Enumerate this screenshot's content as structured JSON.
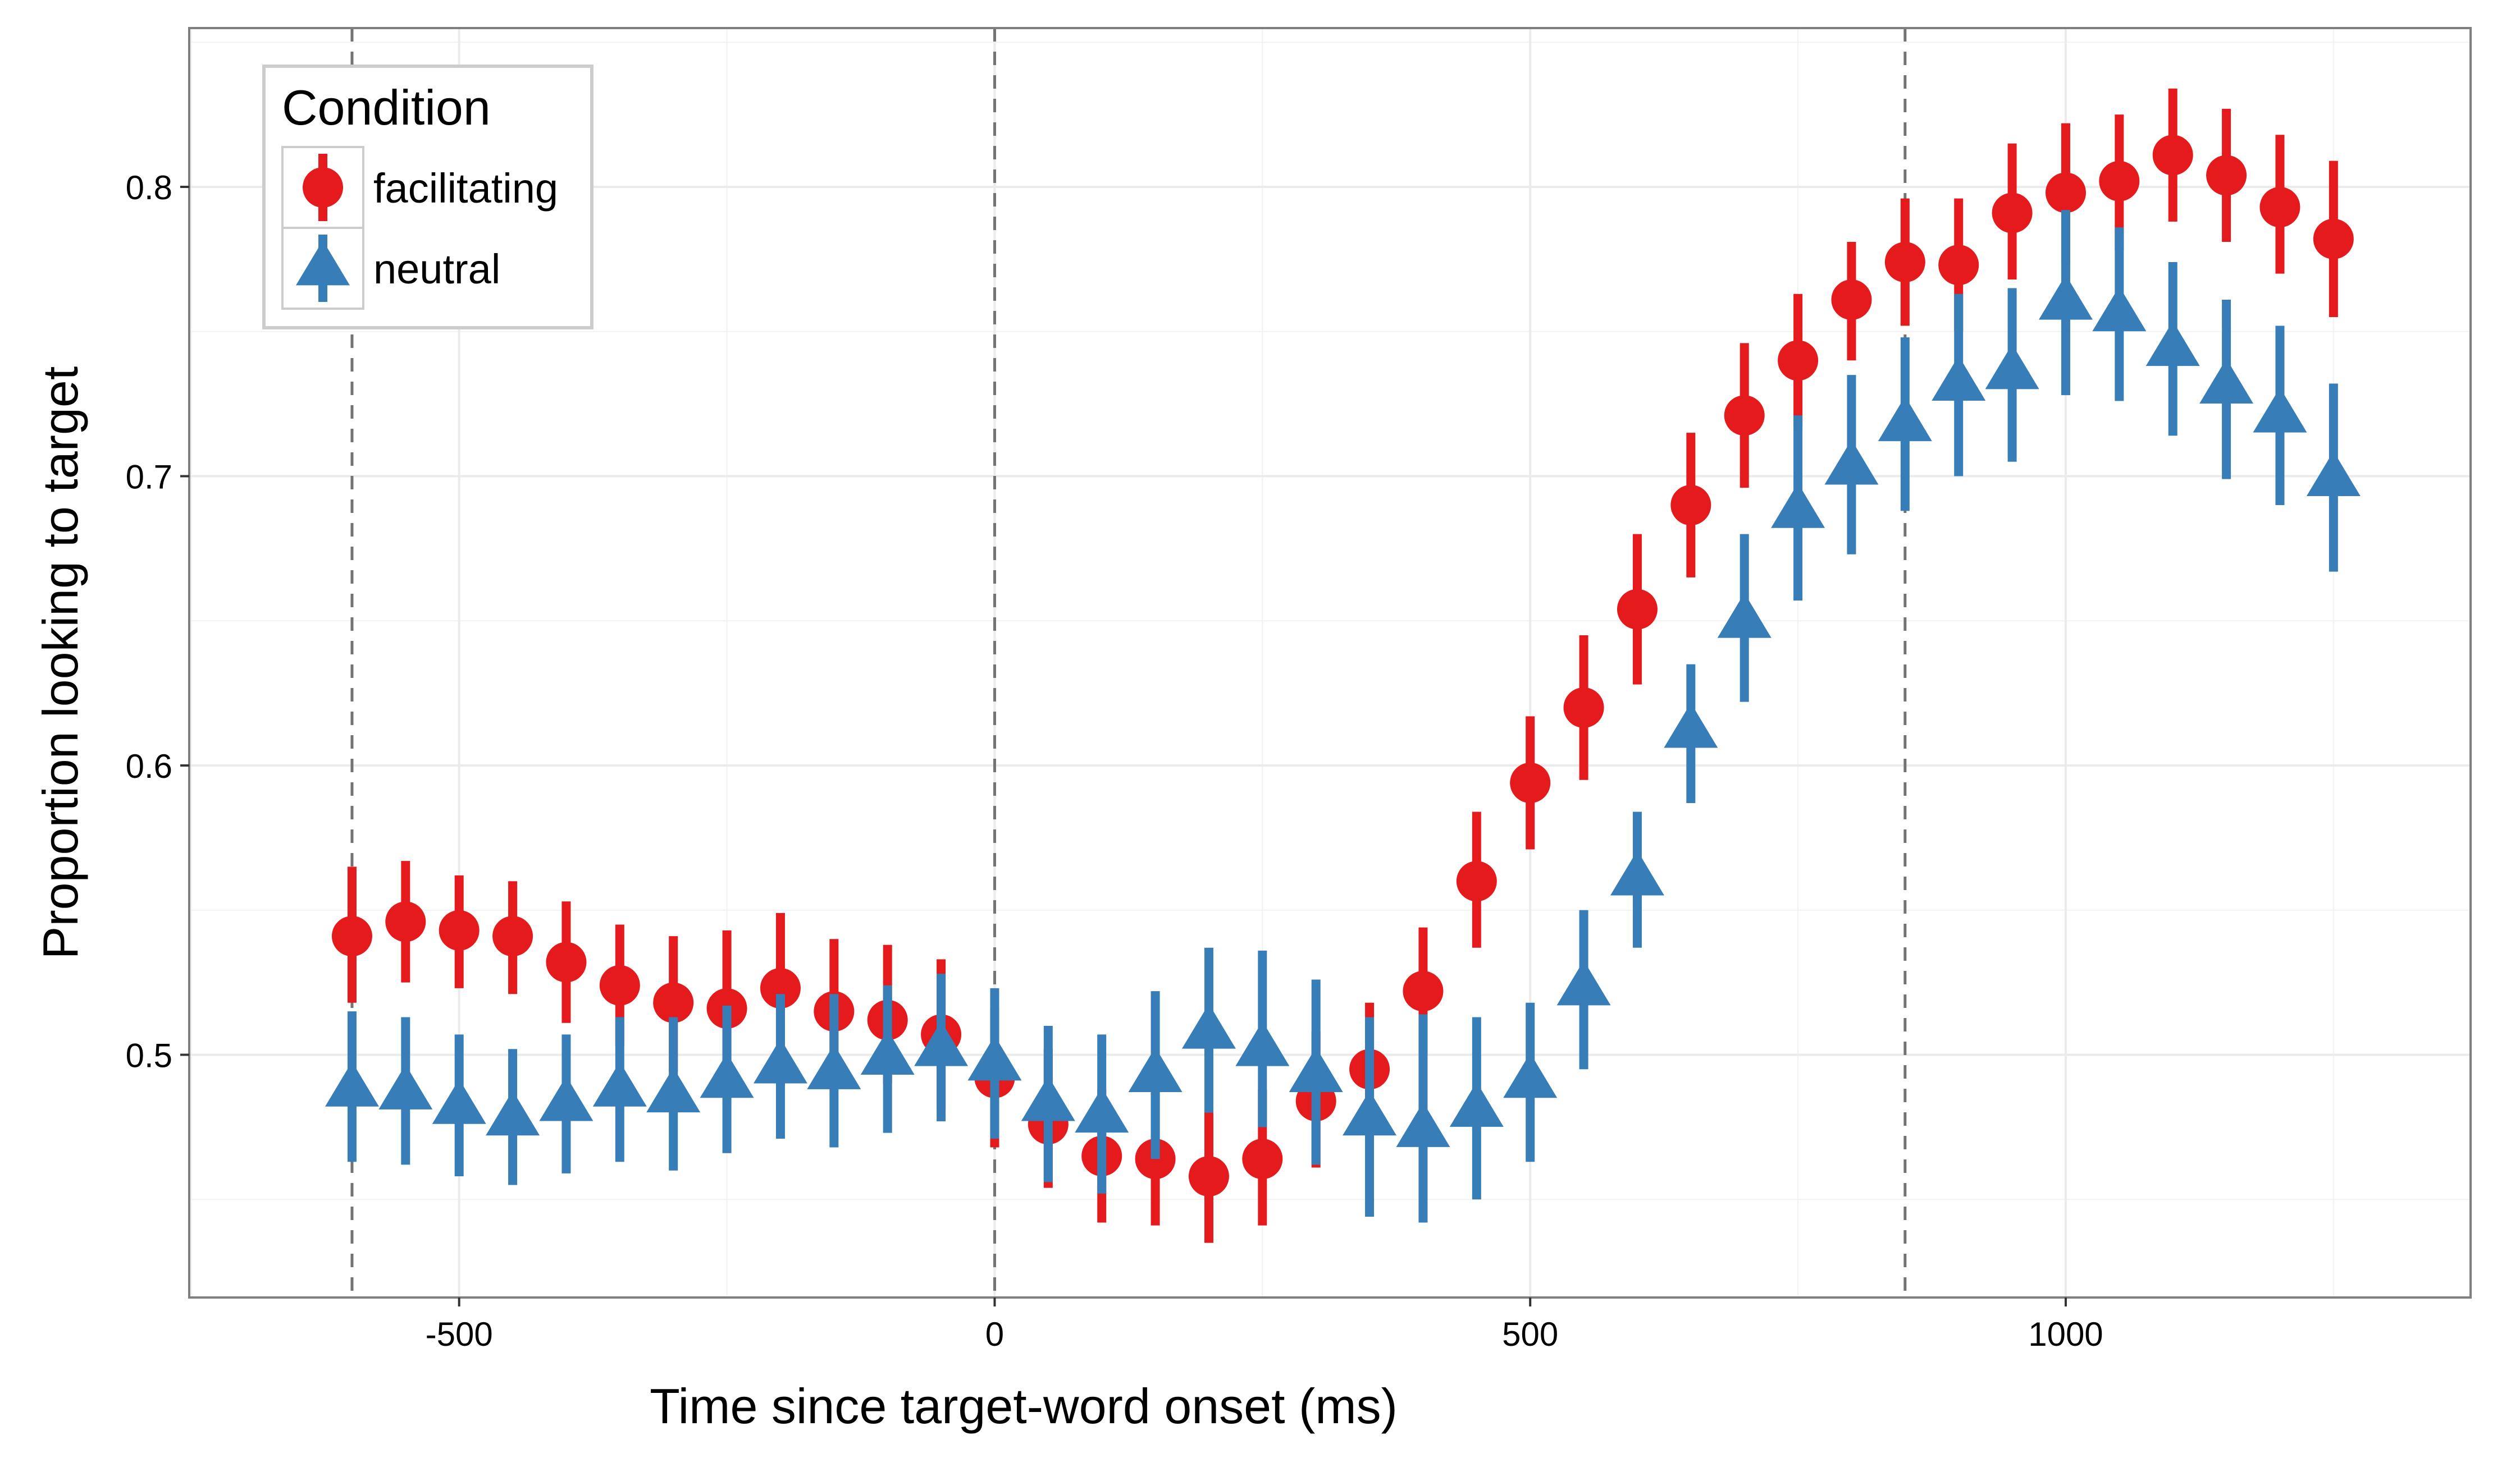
{
  "chart_data": {
    "type": "scatter",
    "xlabel": "Time since target-word onset (ms)",
    "ylabel": "Proportion looking to target",
    "xlim": [
      -752,
      1378
    ],
    "ylim": [
      0.4161,
      0.8549
    ],
    "x_ticks": [
      -500,
      0,
      500,
      1000
    ],
    "x_tick_labels": [
      "-500",
      "0",
      "500",
      "1000"
    ],
    "y_ticks": [
      0.5,
      0.6,
      0.7,
      0.8
    ],
    "y_tick_labels": [
      "0.5",
      "0.6",
      "0.7",
      "0.8"
    ],
    "grid": true,
    "reference_lines_x": [
      -600,
      0,
      850
    ],
    "legend": {
      "title": "Condition",
      "placement": "top-left",
      "entries": [
        "facilitating",
        "neutral"
      ]
    },
    "series": [
      {
        "name": "facilitating",
        "marker": "circle",
        "color": "#e41a1c",
        "x": [
          -600,
          -550,
          -500,
          -450,
          -400,
          -350,
          -300,
          -250,
          -200,
          -150,
          -100,
          -50,
          0,
          50,
          100,
          150,
          200,
          250,
          300,
          350,
          400,
          450,
          500,
          550,
          600,
          650,
          700,
          750,
          800,
          850,
          900,
          950,
          1000,
          1050,
          1100,
          1150,
          1200,
          1250
        ],
        "y": [
          0.541,
          0.546,
          0.543,
          0.541,
          0.532,
          0.524,
          0.518,
          0.516,
          0.523,
          0.515,
          0.512,
          0.507,
          0.492,
          0.476,
          0.465,
          0.464,
          0.458,
          0.464,
          0.484,
          0.495,
          0.522,
          0.56,
          0.594,
          0.62,
          0.654,
          0.69,
          0.721,
          0.74,
          0.761,
          0.774,
          0.773,
          0.791,
          0.798,
          0.802,
          0.811,
          0.804,
          0.793,
          0.782
        ],
        "lower": [
          0.518,
          0.525,
          0.523,
          0.521,
          0.511,
          0.503,
          0.494,
          0.494,
          0.5,
          0.494,
          0.49,
          0.481,
          0.468,
          0.454,
          0.442,
          0.441,
          0.435,
          0.441,
          0.461,
          0.474,
          0.5,
          0.537,
          0.571,
          0.595,
          0.628,
          0.665,
          0.696,
          0.717,
          0.74,
          0.752,
          0.75,
          0.768,
          0.774,
          0.778,
          0.788,
          0.781,
          0.77,
          0.755
        ],
        "upper": [
          0.565,
          0.567,
          0.562,
          0.56,
          0.553,
          0.545,
          0.541,
          0.543,
          0.549,
          0.54,
          0.538,
          0.533,
          0.516,
          0.502,
          0.488,
          0.487,
          0.481,
          0.488,
          0.508,
          0.518,
          0.544,
          0.584,
          0.617,
          0.645,
          0.68,
          0.715,
          0.746,
          0.763,
          0.781,
          0.796,
          0.796,
          0.815,
          0.822,
          0.825,
          0.834,
          0.827,
          0.818,
          0.809
        ]
      },
      {
        "name": "neutral",
        "marker": "triangle",
        "color": "#377eb8",
        "x": [
          -600,
          -550,
          -500,
          -450,
          -400,
          -350,
          -300,
          -250,
          -200,
          -150,
          -100,
          -50,
          0,
          50,
          100,
          150,
          200,
          250,
          300,
          350,
          400,
          450,
          500,
          550,
          600,
          650,
          700,
          750,
          800,
          850,
          900,
          950,
          1000,
          1050,
          1100,
          1150,
          1200,
          1250
        ],
        "y": [
          0.488,
          0.487,
          0.482,
          0.478,
          0.483,
          0.488,
          0.486,
          0.491,
          0.496,
          0.494,
          0.499,
          0.502,
          0.497,
          0.483,
          0.479,
          0.493,
          0.508,
          0.502,
          0.493,
          0.478,
          0.474,
          0.481,
          0.491,
          0.523,
          0.561,
          0.612,
          0.65,
          0.688,
          0.703,
          0.718,
          0.732,
          0.736,
          0.76,
          0.756,
          0.744,
          0.731,
          0.721,
          0.699
        ],
        "lower": [
          0.463,
          0.462,
          0.458,
          0.455,
          0.459,
          0.463,
          0.46,
          0.466,
          0.471,
          0.468,
          0.473,
          0.477,
          0.471,
          0.456,
          0.452,
          0.464,
          0.48,
          0.475,
          0.462,
          0.444,
          0.442,
          0.45,
          0.463,
          0.495,
          0.537,
          0.587,
          0.622,
          0.657,
          0.673,
          0.688,
          0.7,
          0.705,
          0.728,
          0.726,
          0.714,
          0.699,
          0.69,
          0.667
        ],
        "upper": [
          0.515,
          0.513,
          0.507,
          0.502,
          0.507,
          0.513,
          0.513,
          0.517,
          0.521,
          0.521,
          0.524,
          0.528,
          0.523,
          0.51,
          0.507,
          0.522,
          0.537,
          0.536,
          0.526,
          0.513,
          0.514,
          0.513,
          0.518,
          0.55,
          0.584,
          0.635,
          0.68,
          0.721,
          0.735,
          0.748,
          0.763,
          0.765,
          0.792,
          0.786,
          0.774,
          0.761,
          0.752,
          0.732
        ]
      }
    ]
  }
}
